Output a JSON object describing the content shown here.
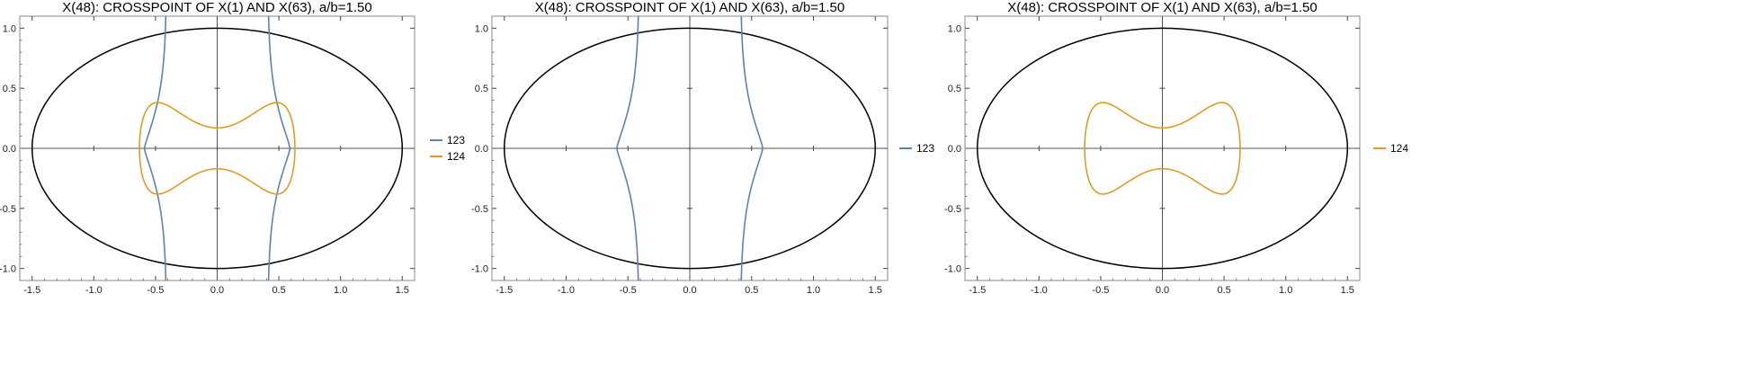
{
  "colors": {
    "series_123": "#5E81B5",
    "series_124": "#E19C24",
    "ellipse": "#000000",
    "axes": "#555555",
    "frame": "#888888"
  },
  "chart_data": [
    {
      "type": "line",
      "title": "X(48): CROSSPOINT OF X(1) AND X(63), a/b=1.50",
      "xlim": [
        -1.6,
        1.6
      ],
      "ylim": [
        -1.1,
        1.1
      ],
      "x_ticks": [
        "-1.5",
        "-1.0",
        "-0.5",
        "0.0",
        "0.5",
        "1.0",
        "1.5"
      ],
      "y_ticks": [
        "-1.0",
        "-0.5",
        "0.0",
        "0.5",
        "1.0"
      ],
      "grid": false,
      "legend_position": "right",
      "ellipse": {
        "a": 1.5,
        "b": 1.0
      },
      "series": [
        {
          "name": "123",
          "color": "#5E81B5",
          "kind": "curve123"
        },
        {
          "name": "124",
          "color": "#E19C24",
          "kind": "curve124"
        }
      ]
    },
    {
      "type": "line",
      "title": "X(48): CROSSPOINT OF X(1) AND X(63), a/b=1.50",
      "xlim": [
        -1.6,
        1.6
      ],
      "ylim": [
        -1.1,
        1.1
      ],
      "x_ticks": [
        "-1.5",
        "-1.0",
        "-0.5",
        "0.0",
        "0.5",
        "1.0",
        "1.5"
      ],
      "y_ticks": [
        "-1.0",
        "-0.5",
        "0.0",
        "0.5",
        "1.0"
      ],
      "grid": false,
      "legend_position": "right",
      "ellipse": {
        "a": 1.5,
        "b": 1.0
      },
      "series": [
        {
          "name": "123",
          "color": "#5E81B5",
          "kind": "curve123"
        }
      ]
    },
    {
      "type": "line",
      "title": "X(48): CROSSPOINT OF X(1) AND X(63), a/b=1.50",
      "xlim": [
        -1.6,
        1.6
      ],
      "ylim": [
        -1.1,
        1.1
      ],
      "x_ticks": [
        "-1.5",
        "-1.0",
        "-0.5",
        "0.0",
        "0.5",
        "1.0",
        "1.5"
      ],
      "y_ticks": [
        "-1.0",
        "-0.5",
        "0.0",
        "0.5",
        "1.0"
      ],
      "grid": false,
      "legend_position": "right",
      "ellipse": {
        "a": 1.5,
        "b": 1.0
      },
      "series": [
        {
          "name": "124",
          "color": "#E19C24",
          "kind": "curve124"
        }
      ]
    }
  ]
}
